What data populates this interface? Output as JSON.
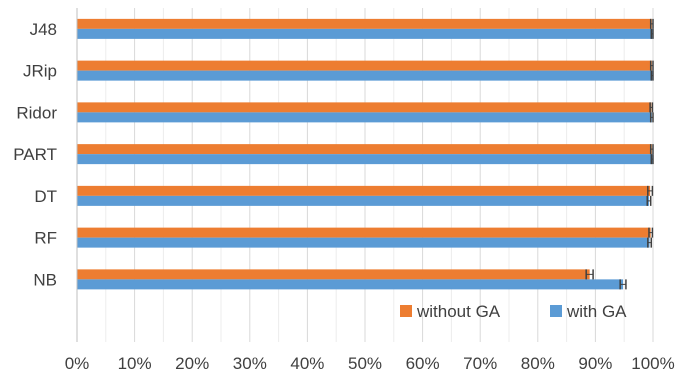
{
  "chart_data": {
    "type": "bar",
    "orientation": "horizontal",
    "categories": [
      "J48",
      "JRip",
      "Ridor",
      "PART",
      "DT",
      "RF",
      "NB"
    ],
    "series": [
      {
        "name": "without GA",
        "color": "#ED7D31",
        "values": [
          99.8,
          99.8,
          99.7,
          99.8,
          99.5,
          99.6,
          89.0
        ],
        "error": [
          0.2,
          0.2,
          0.2,
          0.2,
          0.4,
          0.3,
          0.6
        ]
      },
      {
        "name": "with GA",
        "color": "#5B9BD5",
        "values": [
          99.9,
          99.9,
          99.8,
          99.9,
          99.3,
          99.4,
          94.8
        ],
        "error": [
          0.2,
          0.2,
          0.2,
          0.2,
          0.3,
          0.3,
          0.5
        ]
      }
    ],
    "xlim": [
      0,
      100
    ],
    "x_ticks": [
      "0%",
      "10%",
      "20%",
      "30%",
      "40%",
      "50%",
      "60%",
      "70%",
      "80%",
      "90%",
      "100%"
    ],
    "grid": true,
    "legend_position": "bottom-right",
    "title": "",
    "xlabel": "",
    "ylabel": ""
  }
}
